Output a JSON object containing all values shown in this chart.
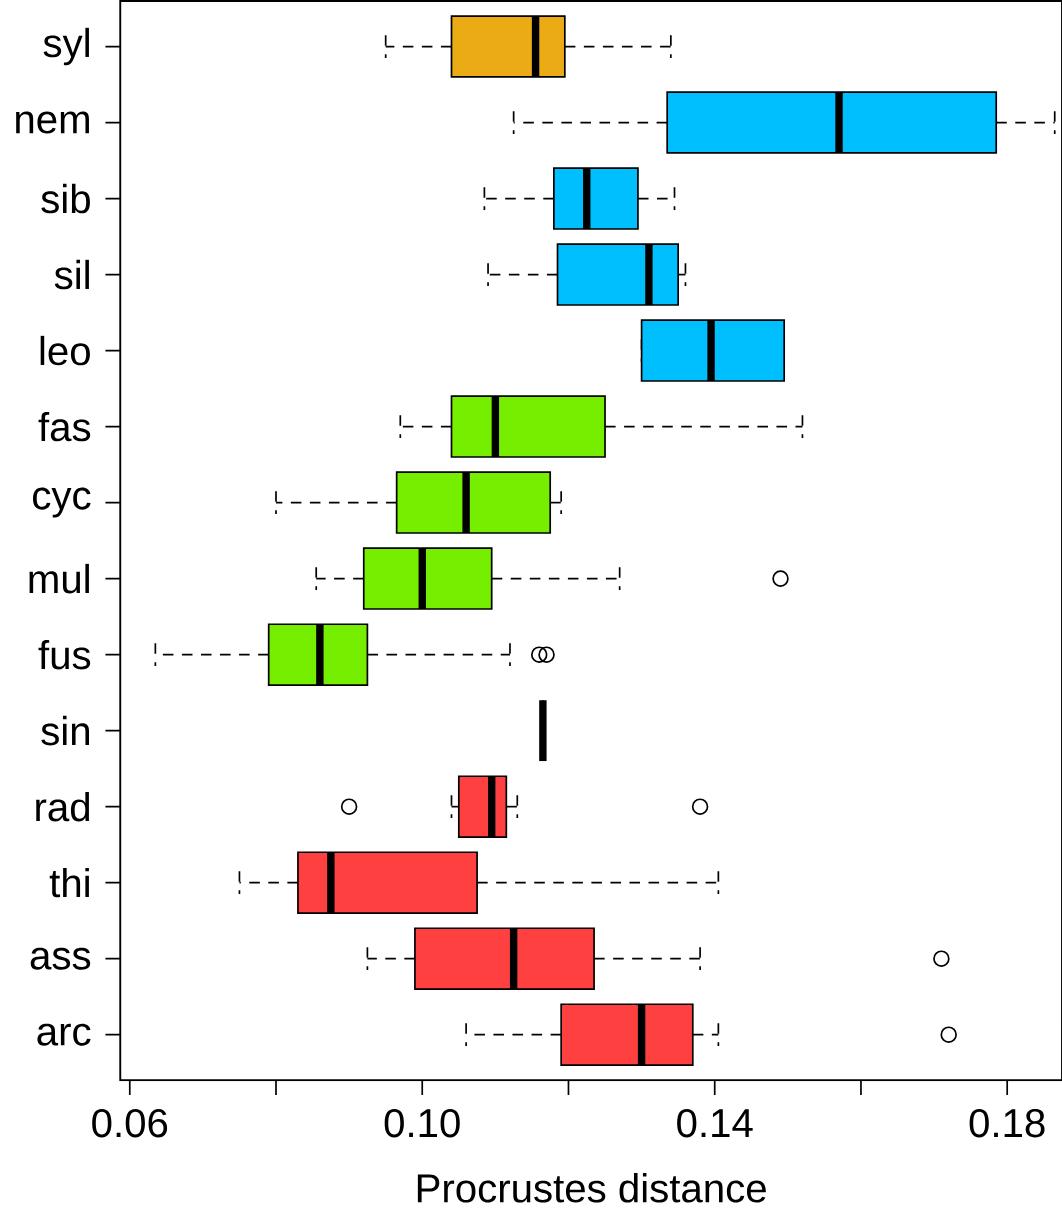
{
  "chart_data": {
    "type": "box",
    "xlabel": "Procrustes distance",
    "orientation": "horizontal",
    "categories": [
      "syl",
      "nem",
      "sib",
      "sil",
      "leo",
      "fas",
      "cyc",
      "mul",
      "fus",
      "sin",
      "rad",
      "thi",
      "ass",
      "arc"
    ],
    "colors": [
      "#eaab14",
      "#00bfff",
      "#00bfff",
      "#00bfff",
      "#00bfff",
      "#76ee00",
      "#76ee00",
      "#76ee00",
      "#76ee00",
      "#000000",
      "#ff4040",
      "#ff4040",
      "#ff4040",
      "#ff4040"
    ],
    "boxes": [
      {
        "low": 0.095,
        "q1": 0.104,
        "median": 0.1155,
        "q3": 0.1195,
        "high": 0.134
      },
      {
        "low": 0.1125,
        "q1": 0.1335,
        "median": 0.157,
        "q3": 0.1785,
        "high": 0.1865
      },
      {
        "low": 0.1085,
        "q1": 0.118,
        "median": 0.1225,
        "q3": 0.1295,
        "high": 0.1345
      },
      {
        "low": 0.109,
        "q1": 0.1185,
        "median": 0.131,
        "q3": 0.135,
        "high": 0.136
      },
      {
        "low": 0.13,
        "q1": 0.13,
        "median": 0.1395,
        "q3": 0.1495,
        "high": 0.1495
      },
      {
        "low": 0.097,
        "q1": 0.104,
        "median": 0.11,
        "q3": 0.125,
        "high": 0.152
      },
      {
        "low": 0.08,
        "q1": 0.0965,
        "median": 0.106,
        "q3": 0.1175,
        "high": 0.119
      },
      {
        "low": 0.0855,
        "q1": 0.092,
        "median": 0.1,
        "q3": 0.1095,
        "high": 0.127,
        "outliers": [
          0.149
        ]
      },
      {
        "low": 0.0635,
        "q1": 0.079,
        "median": 0.086,
        "q3": 0.0925,
        "high": 0.112,
        "outliers": [
          0.116,
          0.117
        ]
      },
      {
        "low": 0.1165,
        "q1": 0.1165,
        "median": 0.1165,
        "q3": 0.1165,
        "high": 0.1165
      },
      {
        "low": 0.104,
        "q1": 0.105,
        "median": 0.1095,
        "q3": 0.1115,
        "high": 0.113,
        "outliers": [
          0.09,
          0.138
        ]
      },
      {
        "low": 0.075,
        "q1": 0.083,
        "median": 0.0875,
        "q3": 0.1075,
        "high": 0.1405
      },
      {
        "low": 0.0925,
        "q1": 0.099,
        "median": 0.1125,
        "q3": 0.1235,
        "high": 0.138,
        "outliers": [
          0.171
        ]
      },
      {
        "low": 0.106,
        "q1": 0.119,
        "median": 0.13,
        "q3": 0.137,
        "high": 0.1405,
        "outliers": [
          0.172
        ]
      }
    ],
    "xlim": [
      0.0587,
      0.1875
    ],
    "xticks": [
      0.06,
      {
        "value": 0.08,
        "label": null
      },
      {
        "value": 0.1,
        "label": "0.10"
      },
      {
        "value": 0.12,
        "label": null
      },
      0.14,
      {
        "value": 0.16,
        "label": null
      },
      0.18
    ]
  }
}
